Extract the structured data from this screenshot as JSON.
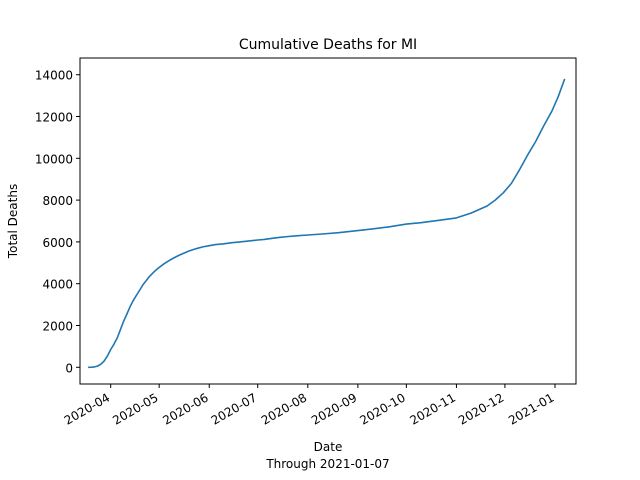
{
  "chart_data": {
    "type": "line",
    "title": "Cumulative Deaths for MI",
    "xlabel": "Date",
    "subtitle": "Through 2021-01-07",
    "ylabel": "Total Deaths",
    "xlim": [
      "2020-03-13",
      "2021-01-14"
    ],
    "ylim": [
      -800,
      14800
    ],
    "xticks": [
      "2020-04",
      "2020-05",
      "2020-06",
      "2020-07",
      "2020-08",
      "2020-09",
      "2020-10",
      "2020-11",
      "2020-12",
      "2021-01"
    ],
    "yticks": [
      0,
      2000,
      4000,
      6000,
      8000,
      10000,
      12000,
      14000
    ],
    "grid": false,
    "series": [
      {
        "color": "#1f77b4",
        "points": [
          [
            "2020-03-18",
            0
          ],
          [
            "2020-03-20",
            5
          ],
          [
            "2020-03-22",
            20
          ],
          [
            "2020-03-24",
            60
          ],
          [
            "2020-03-26",
            150
          ],
          [
            "2020-03-28",
            300
          ],
          [
            "2020-03-30",
            550
          ],
          [
            "2020-04-01",
            850
          ],
          [
            "2020-04-03",
            1100
          ],
          [
            "2020-04-05",
            1400
          ],
          [
            "2020-04-07",
            1800
          ],
          [
            "2020-04-09",
            2200
          ],
          [
            "2020-04-11",
            2550
          ],
          [
            "2020-04-13",
            2900
          ],
          [
            "2020-04-15",
            3200
          ],
          [
            "2020-04-17",
            3450
          ],
          [
            "2020-04-19",
            3700
          ],
          [
            "2020-04-21",
            3950
          ],
          [
            "2020-04-23",
            4150
          ],
          [
            "2020-04-25",
            4350
          ],
          [
            "2020-04-27",
            4500
          ],
          [
            "2020-04-29",
            4650
          ],
          [
            "2020-05-01",
            4780
          ],
          [
            "2020-05-04",
            4950
          ],
          [
            "2020-05-07",
            5100
          ],
          [
            "2020-05-10",
            5230
          ],
          [
            "2020-05-13",
            5350
          ],
          [
            "2020-05-16",
            5450
          ],
          [
            "2020-05-19",
            5550
          ],
          [
            "2020-05-22",
            5630
          ],
          [
            "2020-05-25",
            5700
          ],
          [
            "2020-05-28",
            5760
          ],
          [
            "2020-06-01",
            5820
          ],
          [
            "2020-06-05",
            5870
          ],
          [
            "2020-06-10",
            5910
          ],
          [
            "2020-06-15",
            5960
          ],
          [
            "2020-06-20",
            6000
          ],
          [
            "2020-06-25",
            6040
          ],
          [
            "2020-07-01",
            6090
          ],
          [
            "2020-07-05",
            6120
          ],
          [
            "2020-07-10",
            6170
          ],
          [
            "2020-07-15",
            6220
          ],
          [
            "2020-07-20",
            6260
          ],
          [
            "2020-07-25",
            6290
          ],
          [
            "2020-08-01",
            6330
          ],
          [
            "2020-08-10",
            6380
          ],
          [
            "2020-08-20",
            6440
          ],
          [
            "2020-09-01",
            6540
          ],
          [
            "2020-09-10",
            6620
          ],
          [
            "2020-09-20",
            6720
          ],
          [
            "2020-10-01",
            6850
          ],
          [
            "2020-10-10",
            6920
          ],
          [
            "2020-10-20",
            7020
          ],
          [
            "2020-11-01",
            7150
          ],
          [
            "2020-11-10",
            7380
          ],
          [
            "2020-11-20",
            7720
          ],
          [
            "2020-11-25",
            8000
          ],
          [
            "2020-11-30",
            8350
          ],
          [
            "2020-12-05",
            8800
          ],
          [
            "2020-12-10",
            9450
          ],
          [
            "2020-12-15",
            10150
          ],
          [
            "2020-12-20",
            10800
          ],
          [
            "2020-12-25",
            11550
          ],
          [
            "2020-12-30",
            12250
          ],
          [
            "2021-01-03",
            12950
          ],
          [
            "2021-01-07",
            13800
          ]
        ]
      }
    ]
  }
}
